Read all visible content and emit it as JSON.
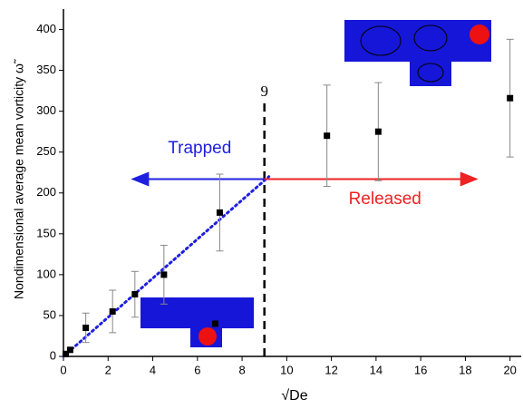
{
  "chart_data": {
    "type": "scatter",
    "x_label": "√De",
    "y_label": "Nondimensional average mean vorticity ω̃",
    "x": [
      0.1,
      0.3,
      1.0,
      2.2,
      3.2,
      4.5,
      6.8,
      7.0,
      11.8,
      14.1,
      20.0
    ],
    "y": [
      3,
      8,
      35,
      55,
      76,
      100,
      40,
      176,
      270,
      275,
      316
    ],
    "errors": [
      null,
      null,
      18,
      26,
      28,
      36,
      null,
      47,
      62,
      60,
      72
    ],
    "marker_color": "#000000",
    "xlim": [
      0,
      20.5
    ],
    "ylim": [
      0,
      425
    ],
    "xticks": [
      0,
      2,
      4,
      6,
      8,
      10,
      12,
      14,
      16,
      18,
      20
    ],
    "yticks": [
      0,
      50,
      100,
      150,
      200,
      250,
      300,
      350,
      400
    ],
    "vline_x": 9,
    "fit_line": {
      "x": [
        0,
        9.2
      ],
      "y": [
        0,
        220
      ],
      "color": "#1f1fe0"
    },
    "arrows": [
      {
        "label": "Trapped",
        "color": "#1f1fe0",
        "x": [
          9,
          3.1
        ],
        "y": 217,
        "label_x": 6.1,
        "label_y": 254
      },
      {
        "label": "Released",
        "color": "#ee2222",
        "x": [
          9,
          18.5
        ],
        "y": 217,
        "label_x": 14.4,
        "label_y": 192
      }
    ]
  }
}
